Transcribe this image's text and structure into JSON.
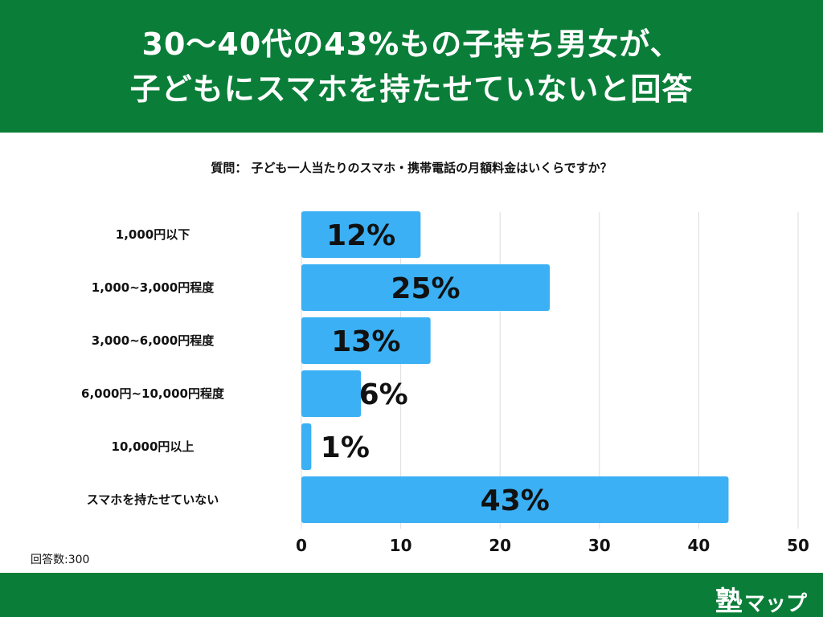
{
  "header": {
    "line1": "30〜40代の43%もの子持ち男女が、",
    "line2": "子どもにスマホを持たせていないと回答"
  },
  "question": "質問： 子ども一人当たりのスマホ・携帯電話の月額料金はいくらですか？",
  "response_count": "回答数:300",
  "logo": {
    "main": "塾",
    "sub": "マップ"
  },
  "colors": {
    "header": "#0a7e38",
    "bar": "#3bb0f4",
    "grid": "#dddddd"
  },
  "chart_data": {
    "type": "bar",
    "orientation": "horizontal",
    "categories": [
      "1,000円以下",
      "1,000~3,000円程度",
      "3,000~6,000円程度",
      "6,000円~10,000円程度",
      "10,000円以上",
      "スマホを持たせていない"
    ],
    "values": [
      12,
      25,
      13,
      6,
      1,
      43
    ],
    "value_labels": [
      "12%",
      "25%",
      "13%",
      "6%",
      "1%",
      "43%"
    ],
    "x_ticks": [
      "0",
      "10",
      "20",
      "30",
      "40",
      "50"
    ],
    "xlim": [
      0,
      50
    ],
    "grid": true
  }
}
